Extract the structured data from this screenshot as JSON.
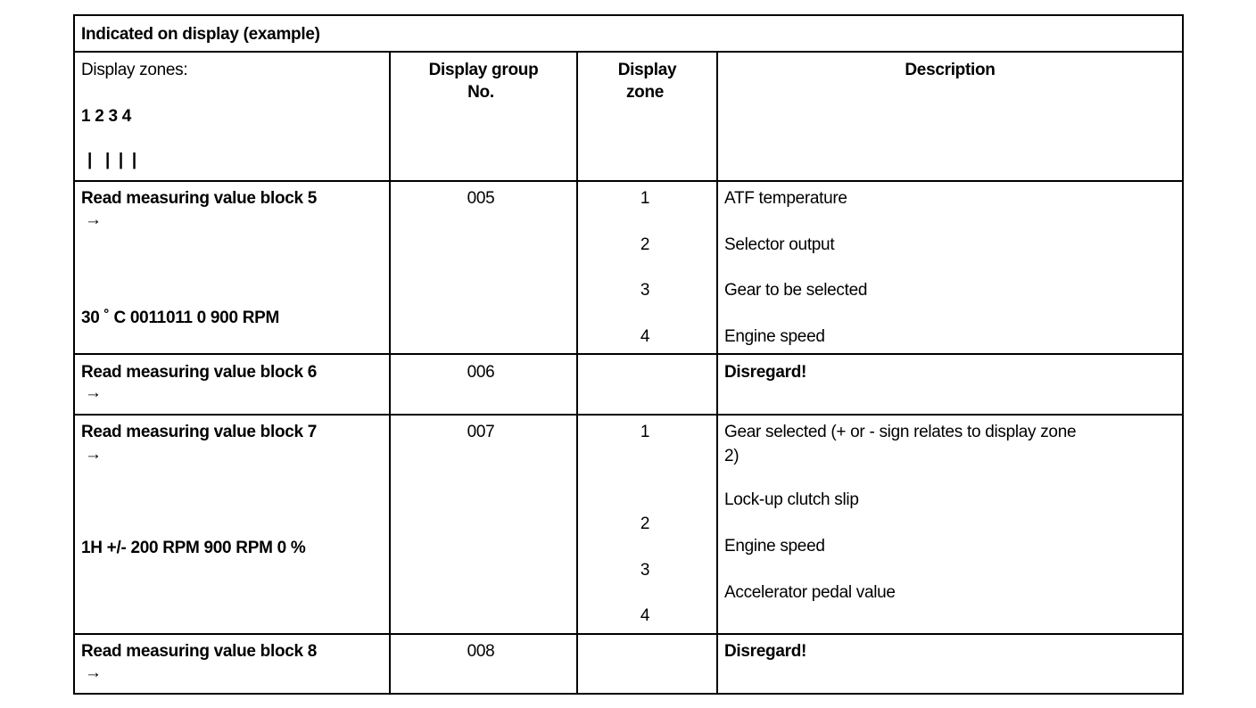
{
  "title": "Indicated on display (example)",
  "header": {
    "display_zones_label": "Display zones:",
    "zone_numbers": "1 2 3 4",
    "zone_bars": "|   |  |  |",
    "col_group": "Display group",
    "col_group_2": "No.",
    "col_zone": "Display",
    "col_zone_2": "zone",
    "col_description": "Description"
  },
  "rows": [
    {
      "label": "Read measuring value block 5",
      "arrow": "→",
      "example": "30 ˚ C 0011011 0 900 RPM",
      "group": "005",
      "zones": [
        "1",
        "2",
        "3",
        "4"
      ],
      "descriptions": [
        "ATF temperature",
        "Selector output",
        "Gear to be selected",
        "Engine speed"
      ]
    },
    {
      "label": "Read measuring value block 6",
      "arrow": "→",
      "group": "006",
      "descriptions": [
        "Disregard!"
      ]
    },
    {
      "label": "Read measuring value block 7",
      "arrow": "→",
      "example": "1H +/- 200 RPM 900 RPM 0 %",
      "group": "007",
      "zones": [
        "1",
        "2",
        "3",
        "4"
      ],
      "descriptions": [
        "Gear selected (+ or - sign relates to display zone",
        "2)",
        "Lock-up clutch slip",
        "Engine speed",
        "Accelerator pedal value"
      ]
    },
    {
      "label": "Read measuring value block 8",
      "arrow": "→",
      "group": "008",
      "descriptions": [
        "Disregard!"
      ]
    }
  ]
}
